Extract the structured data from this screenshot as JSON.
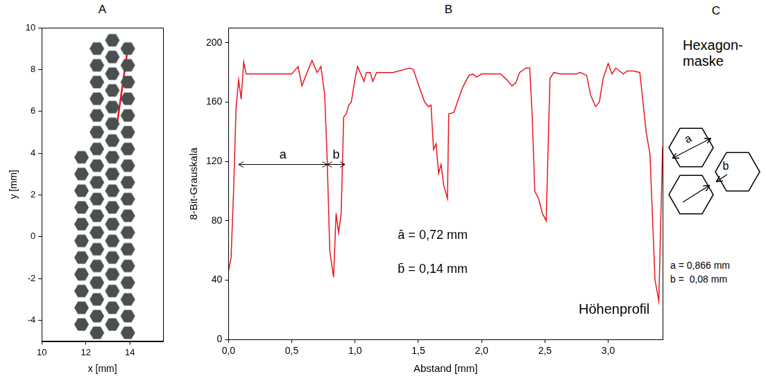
{
  "chart_data": [
    {
      "title": "A",
      "type": "scatter",
      "x_label": "x [mm]",
      "y_label": "y [mm]",
      "xlim": [
        10,
        15.5
      ],
      "xticks": [
        10,
        12,
        14
      ],
      "ylim": [
        -5,
        10
      ],
      "yticks": [
        -4,
        -2,
        0,
        2,
        4,
        6,
        8,
        10
      ],
      "grid": false,
      "series": [
        {
          "type": "scatter",
          "marker": "hexagon",
          "color": "#4a5050",
          "x": [
            11.8,
            11.8,
            11.8,
            11.8,
            11.8,
            11.8,
            11.8,
            11.8,
            11.8,
            11.8,
            11.8,
            12.5,
            12.5,
            12.5,
            12.5,
            12.5,
            12.5,
            12.5,
            12.5,
            12.5,
            12.5,
            12.5,
            12.5,
            12.5,
            12.5,
            12.5,
            12.5,
            12.5,
            12.5,
            13.2,
            13.2,
            13.2,
            13.2,
            13.2,
            13.2,
            13.2,
            13.2,
            13.2,
            13.2,
            13.2,
            13.2,
            13.2,
            13.2,
            13.2,
            13.2,
            13.2,
            13.2,
            13.9,
            13.9,
            13.9,
            13.9,
            13.9,
            13.9,
            13.9,
            13.9,
            13.9,
            13.9,
            13.9,
            13.9,
            13.9,
            13.9,
            13.9,
            13.9,
            13.9,
            13.9
          ],
          "y": [
            -4.2,
            -3.4,
            -2.6,
            -1.8,
            -1.0,
            -0.2,
            0.6,
            1.4,
            2.2,
            3.0,
            3.8,
            -4.6,
            -3.8,
            -3.0,
            -2.2,
            -1.4,
            -0.6,
            0.2,
            1.0,
            1.8,
            2.6,
            3.4,
            4.2,
            5.0,
            5.8,
            6.6,
            7.4,
            8.2,
            9.0,
            -4.2,
            -3.4,
            -2.6,
            -1.8,
            -1.0,
            -0.2,
            0.6,
            1.4,
            2.2,
            3.0,
            3.8,
            4.6,
            5.4,
            6.2,
            7.0,
            7.8,
            8.6,
            9.4,
            -4.6,
            -3.8,
            -3.0,
            -2.2,
            -1.4,
            -0.6,
            0.2,
            1.0,
            1.8,
            2.6,
            3.4,
            4.2,
            5.0,
            5.8,
            6.6,
            7.4,
            8.2,
            9.0
          ]
        },
        {
          "type": "line",
          "color": "#e8141c",
          "x": [
            13.4,
            13.9
          ],
          "y": [
            5.3,
            9.0
          ]
        }
      ]
    },
    {
      "title": "B",
      "type": "line",
      "x_label": "Abstand [mm]",
      "y_label": "8-Bit-Grauskala",
      "xlim": [
        0,
        3.43
      ],
      "xticks": [
        {
          "value": 0,
          "label": "0,0"
        },
        {
          "value": 0.5,
          "label": "0,5"
        },
        {
          "value": 1,
          "label": "1,0"
        },
        {
          "value": 1.5,
          "label": "1,5"
        },
        {
          "value": 2,
          "label": "2,0"
        },
        {
          "value": 2.5,
          "label": "2,5"
        },
        {
          "value": 3,
          "label": "3,0"
        }
      ],
      "ylim": [
        0,
        210
      ],
      "yticks": [
        0,
        40,
        80,
        120,
        160,
        200
      ],
      "grid": false,
      "series": [
        {
          "type": "line",
          "color": "#e8141c",
          "x": [
            0,
            0.02,
            0.04,
            0.06,
            0.08,
            0.1,
            0.12,
            0.14,
            0.2,
            0.3,
            0.4,
            0.5,
            0.55,
            0.58,
            0.62,
            0.66,
            0.7,
            0.73,
            0.76,
            0.78,
            0.8,
            0.83,
            0.85,
            0.87,
            0.89,
            0.91,
            0.93,
            0.95,
            0.97,
            1.0,
            1.02,
            1.05,
            1.07,
            1.09,
            1.12,
            1.14,
            1.17,
            1.3,
            1.43,
            1.46,
            1.5,
            1.55,
            1.58,
            1.6,
            1.62,
            1.64,
            1.66,
            1.68,
            1.7,
            1.73,
            1.74,
            1.78,
            1.8,
            1.85,
            1.9,
            1.93,
            1.96,
            2.0,
            2.15,
            2.2,
            2.24,
            2.27,
            2.3,
            2.35,
            2.38,
            2.4,
            2.42,
            2.45,
            2.48,
            2.51,
            2.54,
            2.57,
            2.62,
            2.75,
            2.78,
            2.83,
            2.86,
            2.9,
            2.93,
            2.96,
            3.0,
            3.03,
            3.06,
            3.09,
            3.12,
            3.15,
            3.2,
            3.25,
            3.3,
            3.33,
            3.37,
            3.4,
            3.43
          ],
          "values": [
            46,
            55,
            100,
            157,
            175,
            162,
            187,
            179,
            179,
            179,
            179,
            179,
            184,
            171,
            180,
            188,
            180,
            184,
            165,
            120,
            60,
            42,
            85,
            72,
            85,
            150,
            152,
            158,
            160,
            176,
            184,
            178,
            174,
            180,
            180,
            174,
            180,
            180,
            183,
            182,
            172,
            160,
            157,
            158,
            128,
            132,
            112,
            118,
            104,
            95,
            152,
            153,
            158,
            170,
            178,
            179,
            177,
            179,
            179,
            175,
            171,
            173,
            180,
            183,
            183,
            150,
            100,
            95,
            85,
            80,
            176,
            180,
            179,
            179,
            180,
            178,
            165,
            157,
            160,
            176,
            186,
            179,
            183,
            181,
            179,
            181,
            181,
            180,
            140,
            125,
            40,
            26,
            130
          ]
        }
      ],
      "annotations": [
        {
          "text": "a",
          "x": [
            0.08,
            0.78
          ],
          "y": 118
        },
        {
          "text": "b",
          "x": [
            0.78,
            0.92
          ],
          "y": 118
        },
        {
          "text": "ā = 0,72 mm"
        },
        {
          "text": "b̄ = 0,14 mm"
        },
        {
          "text": "Höhenprofil"
        }
      ]
    }
  ],
  "diagram": {
    "title": "C",
    "heading": [
      "Hexagon-",
      "maske"
    ],
    "labels": [
      "a",
      "b"
    ],
    "parameters": [
      "a = 0,866 mm",
      "b =  0,08 mm"
    ]
  }
}
